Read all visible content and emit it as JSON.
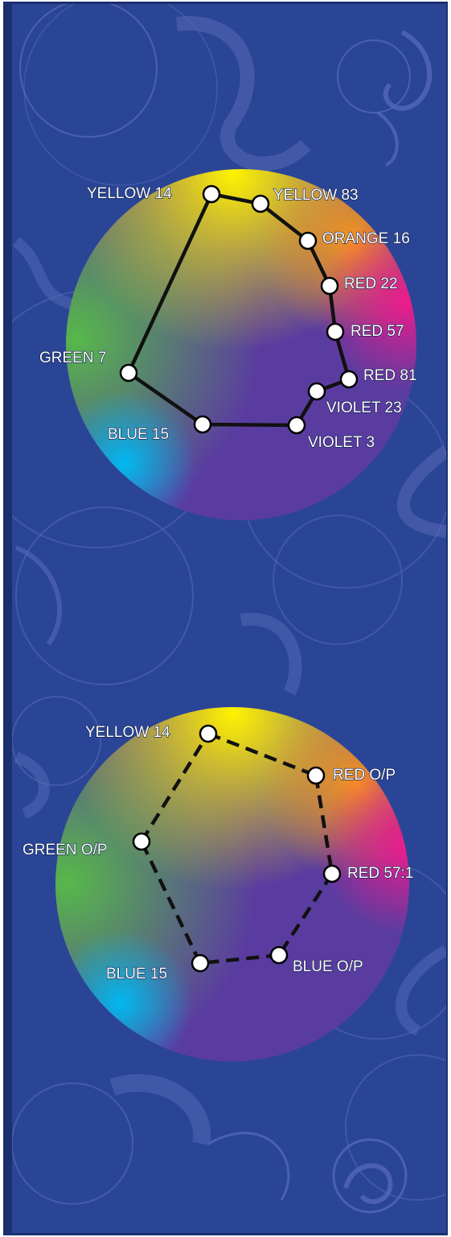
{
  "colors": {
    "background": "#2b4596",
    "frame": "#1c2f6e",
    "swirl": "#5769b8",
    "line": "#111111"
  },
  "wheels": [
    {
      "line_style": "solid",
      "points": [
        {
          "label": "YELLOW 14"
        },
        {
          "label": "YELLOW 83"
        },
        {
          "label": "ORANGE 16"
        },
        {
          "label": "RED 22"
        },
        {
          "label": "RED 57"
        },
        {
          "label": "RED 81"
        },
        {
          "label": "VIOLET 23"
        },
        {
          "label": "VIOLET 3"
        },
        {
          "label": "BLUE 15"
        },
        {
          "label": "GREEN 7"
        }
      ]
    },
    {
      "line_style": "dashed",
      "points": [
        {
          "label": "YELLOW 14"
        },
        {
          "label": "RED O/P"
        },
        {
          "label": "RED 57:1"
        },
        {
          "label": "BLUE O/P"
        },
        {
          "label": "BLUE 15"
        },
        {
          "label": "GREEN O/P"
        }
      ]
    }
  ]
}
